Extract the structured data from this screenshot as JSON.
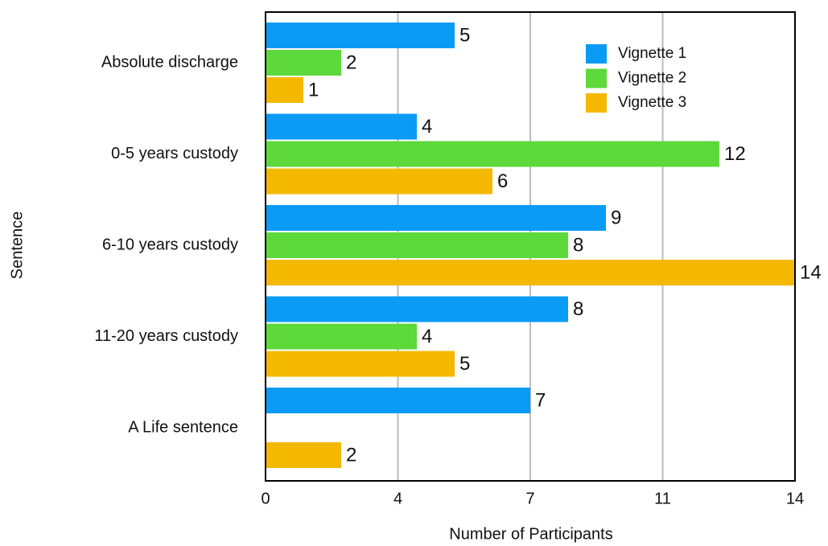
{
  "chart_data": {
    "type": "bar",
    "orientation": "horizontal",
    "categories": [
      "Absolute discharge",
      "0-5 years custody",
      "6-10 years custody",
      "11-20 years custody",
      "A Life sentence"
    ],
    "series": [
      {
        "name": "Vignette 1",
        "color": "#0a9bf5",
        "values": [
          5,
          4,
          9,
          8,
          7
        ]
      },
      {
        "name": "Vignette 2",
        "color": "#5dd93b",
        "values": [
          2,
          12,
          8,
          4,
          null
        ]
      },
      {
        "name": "Vignette 3",
        "color": "#f5b800",
        "values": [
          1,
          6,
          14,
          5,
          2
        ]
      }
    ],
    "xlim": [
      0,
      14
    ],
    "xticks": [
      0,
      {
        "value": 3.5,
        "label": "4"
      },
      7,
      {
        "value": 10.5,
        "label": "11"
      },
      14
    ],
    "xlabel": "Number of Participants",
    "ylabel": "Sentence",
    "grid": true,
    "legend": "upper right"
  }
}
